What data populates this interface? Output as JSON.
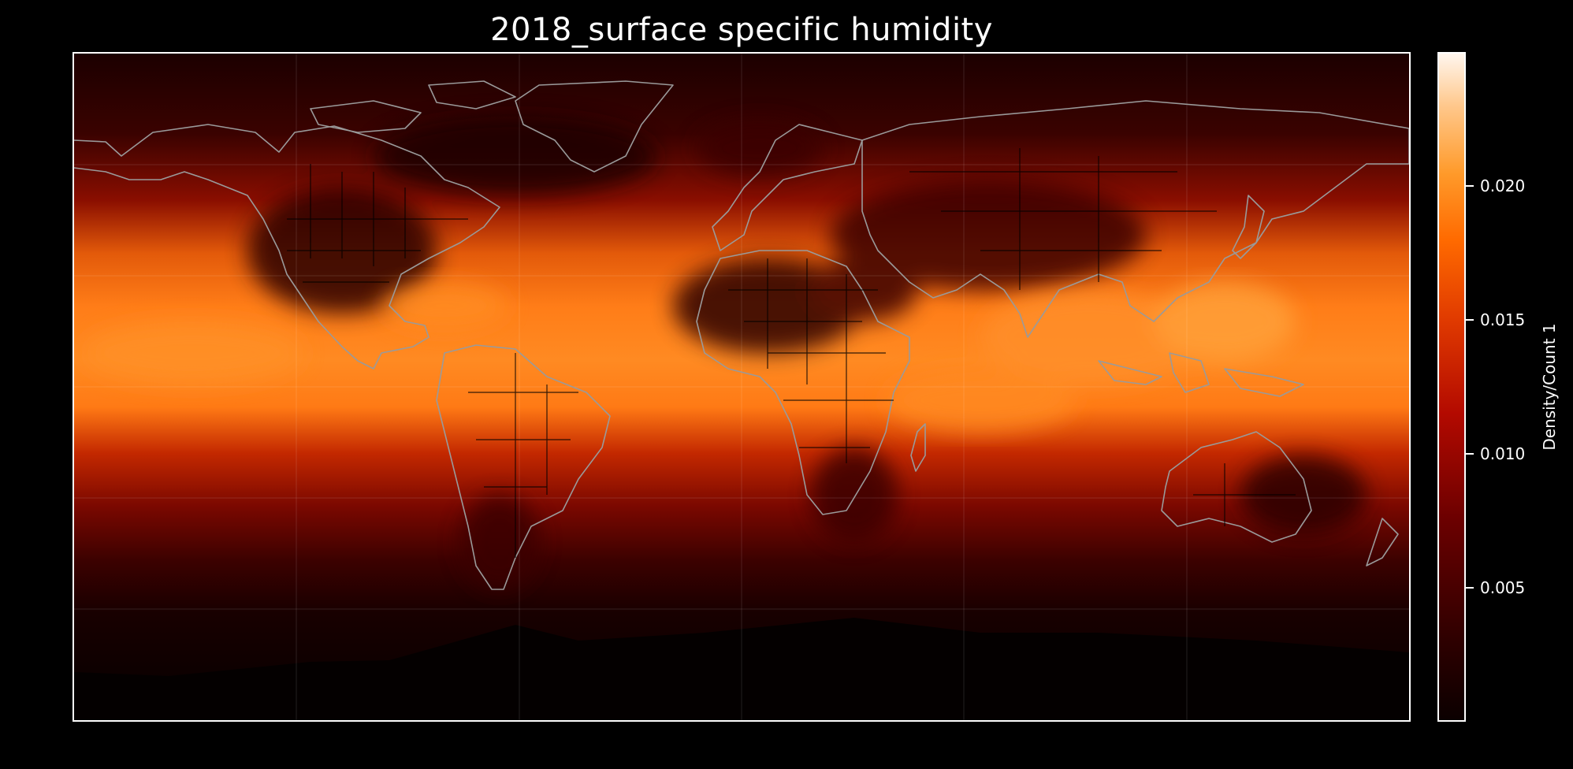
{
  "title": "2018_surface specific humidity",
  "colorbar": {
    "label": "Density/Count 1",
    "ticks": [
      {
        "value": 0.02,
        "label": "0.020"
      },
      {
        "value": 0.015,
        "label": "0.015"
      },
      {
        "value": 0.01,
        "label": "0.010"
      },
      {
        "value": 0.005,
        "label": "0.005"
      }
    ],
    "range": [
      0.0,
      0.025
    ],
    "colormap": "gist_heat"
  },
  "map": {
    "projection": "PlateCarree",
    "extent": {
      "lon": [
        -180,
        180
      ],
      "lat": [
        -90,
        90
      ]
    },
    "coastline_color": "#9a9a9a",
    "border_color": "#000000",
    "gridlines": true
  },
  "colors": {
    "background": "#000000",
    "text": "#ffffff"
  }
}
